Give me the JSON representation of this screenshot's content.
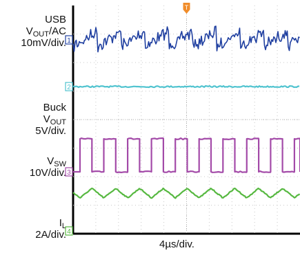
{
  "labels": {
    "usb": {
      "line1": "USB",
      "line2_main": "V",
      "line2_sub": "OUT",
      "line2_rest": "/AC",
      "line3": "10mV/div."
    },
    "buck": {
      "line1": "Buck",
      "line2_main": "V",
      "line2_sub": "OUT",
      "line3": "5V/div."
    },
    "vsw": {
      "line1_main": "V",
      "line1_sub": "SW",
      "line2": "10V/div."
    },
    "il": {
      "line1_main": "I",
      "line1_sub": "L",
      "line2": "2A/div."
    }
  },
  "timebase": "4µs/div.",
  "chart_data": {
    "type": "line",
    "x_divisions": 10,
    "y_divisions": 8,
    "trigger_marker": "T",
    "series": [
      {
        "name": "USB VOUT/AC",
        "channel": "1",
        "color": "#1f3fa0",
        "scale": "10mV/div.",
        "shape": "noise",
        "period_div": 1.05
      },
      {
        "name": "Buck VOUT",
        "channel": "2",
        "color": "#4fc3cf",
        "scale": "5V/div.",
        "shape": "flat",
        "period_div": 1.05
      },
      {
        "name": "VSW",
        "channel": "3",
        "color": "#a34aa8",
        "scale": "10V/div.",
        "shape": "square",
        "period_div": 1.05
      },
      {
        "name": "IL",
        "channel": "4",
        "color": "#56b840",
        "scale": "2A/div.",
        "shape": "triangle",
        "period_div": 1.05
      }
    ]
  }
}
